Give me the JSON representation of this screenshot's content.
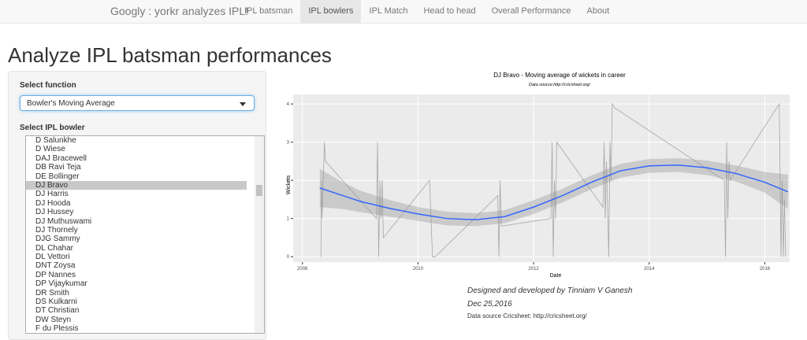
{
  "navbar": {
    "brand": "Googly : yorkr analyzes IPL!",
    "tabs": [
      "IPL batsman",
      "IPL bowlers",
      "IPL Match",
      "Head to head",
      "Overall Performance",
      "About"
    ],
    "active": 1
  },
  "page_title": "Analyze IPL batsman performances",
  "sidebar": {
    "function_label": "Select function",
    "function_value": "Bowler's Moving Average",
    "bowler_label": "Select IPL bowler",
    "bowlers": [
      "D Salunkhe",
      "D Wiese",
      "DAJ Bracewell",
      "DB Ravi Teja",
      "DE Bollinger",
      "DJ Bravo",
      "DJ Harris",
      "DJ Hooda",
      "DJ Hussey",
      "DJ Muthuswami",
      "DJ Thornely",
      "DJG Sammy",
      "DL Chahar",
      "DL Vettori",
      "DNT Zoysa",
      "DP Nannes",
      "DP Vijaykumar",
      "DR Smith",
      "DS Kulkarni",
      "DT Christian",
      "DW Steyn",
      "F du Plessis"
    ],
    "selected": 5
  },
  "chart_data": {
    "type": "line",
    "title": "DJ Bravo - Moving average of wickets in career",
    "subtitle": "Data source:http://cricsheet.org/",
    "x_label": "Date",
    "y_label": "Wickets",
    "xlim": [
      2007.84,
      2016.43
    ],
    "xticks": [
      2008,
      2010,
      2012,
      2014,
      2016
    ],
    "ylim": [
      -0.14,
      4.25
    ],
    "yticks": [
      0,
      1,
      2,
      3,
      4
    ],
    "grid": true,
    "series": [
      {
        "color": "#a6a6a6",
        "x": [
          2008.32,
          2008.33,
          2008.34,
          2008.35,
          2008.36,
          2008.38,
          2008.4,
          2009.28,
          2009.3,
          2009.32,
          2009.34,
          2009.36,
          2009.38,
          2009.4,
          2010.2,
          2010.25,
          2010.3,
          2011.38,
          2011.4,
          2011.42,
          2011.44,
          2012.3,
          2012.32,
          2012.34,
          2012.36,
          2012.38,
          2012.4,
          2013.2,
          2013.22,
          2013.24,
          2013.26,
          2013.3,
          2013.32,
          2013.34,
          2013.36,
          2013.4,
          2015.3,
          2015.32,
          2015.34,
          2015.36,
          2015.38,
          2015.4,
          2016.25,
          2016.28,
          2016.3,
          2016.32,
          2016.34,
          2016.36
        ],
        "values": [
          0,
          2,
          1,
          1.5,
          2,
          3,
          2.5,
          1,
          3,
          0,
          2,
          1,
          2,
          0.5,
          2,
          0,
          0,
          1.6,
          0,
          2,
          0.8,
          1,
          3,
          0,
          2,
          1,
          3,
          1.3,
          3,
          1,
          2.5,
          0,
          3,
          2,
          4,
          3.9,
          2,
          0,
          3,
          1,
          2.5,
          2,
          4,
          0,
          2,
          0,
          1.5,
          0
        ]
      },
      {
        "color": "#3366ff",
        "x": [
          2008.3,
          2008.7,
          2009,
          2009.5,
          2010,
          2010.5,
          2011,
          2011.5,
          2012,
          2012.5,
          2013,
          2013.5,
          2014,
          2014.5,
          2015,
          2015.5,
          2016,
          2016.4
        ],
        "values": [
          1.8,
          1.6,
          1.45,
          1.27,
          1.12,
          1.0,
          0.97,
          1.05,
          1.3,
          1.6,
          1.95,
          2.25,
          2.38,
          2.4,
          2.33,
          2.18,
          1.95,
          1.7
        ],
        "lower": [
          1.3,
          1.25,
          1.17,
          1.05,
          0.94,
          0.82,
          0.8,
          0.88,
          1.12,
          1.42,
          1.77,
          2.07,
          2.2,
          2.22,
          2.14,
          1.97,
          1.68,
          1.25
        ],
        "upper": [
          2.3,
          1.95,
          1.73,
          1.49,
          1.3,
          1.18,
          1.14,
          1.22,
          1.48,
          1.78,
          2.13,
          2.43,
          2.56,
          2.58,
          2.52,
          2.39,
          2.22,
          2.15
        ]
      }
    ]
  },
  "footer": {
    "credit": "Designed and developed by Tinniam V Ganesh",
    "date": "Dec 25,2016",
    "source": "Data source Cricsheet: http://cricsheet.org/"
  }
}
